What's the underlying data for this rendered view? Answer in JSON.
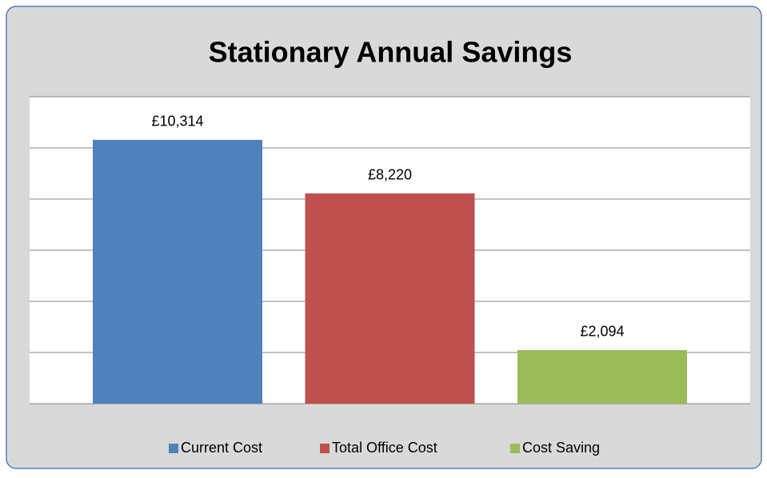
{
  "chart_data": {
    "type": "bar",
    "title": "Stationary Annual Savings",
    "series": [
      {
        "name": "Current Cost",
        "color": "#4f81bd",
        "values": [
          10314
        ],
        "value_labels": [
          "£10,314"
        ]
      },
      {
        "name": "Total Office Cost",
        "color": "#c0504d",
        "values": [
          8220
        ],
        "value_labels": [
          "£8,220"
        ]
      },
      {
        "name": "Cost Saving",
        "color": "#9bbb59",
        "values": [
          2094
        ],
        "value_labels": [
          "£2,094"
        ]
      }
    ],
    "ylim": [
      0,
      12000
    ],
    "yticks": [
      0,
      2000,
      4000,
      6000,
      8000,
      10000,
      12000
    ],
    "grid": true,
    "legend": "bottom"
  }
}
